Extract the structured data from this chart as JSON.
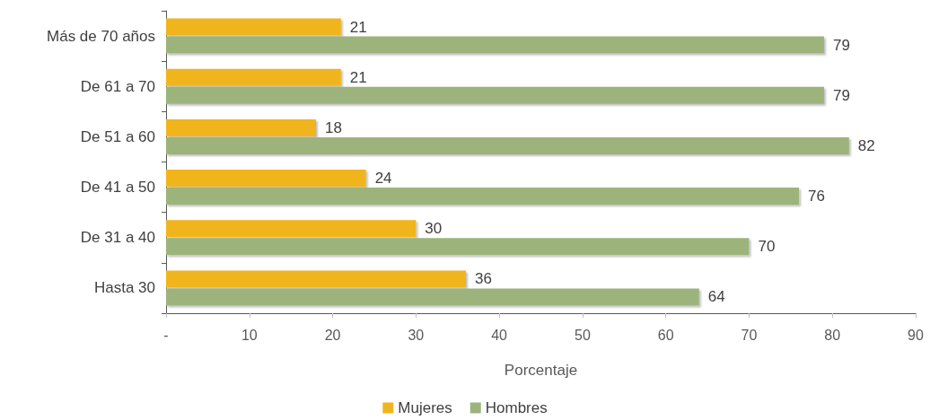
{
  "chart_data": {
    "type": "bar",
    "orientation": "horizontal",
    "xlabel": "Porcentaje",
    "categories": [
      "Más de 70 años",
      "De 61 a 70",
      "De 51 a 60",
      "De 41 a 50",
      "De 31 a 40",
      "Hasta 30"
    ],
    "series": [
      {
        "name": "Mujeres",
        "color": "#f0b51e",
        "values": [
          21,
          21,
          18,
          24,
          30,
          36
        ]
      },
      {
        "name": "Hombres",
        "color": "#9cb47c",
        "values": [
          79,
          79,
          82,
          76,
          70,
          64
        ]
      }
    ],
    "xlim": [
      0,
      90
    ],
    "xticks": [
      {
        "value": 0,
        "label": "-"
      },
      10,
      20,
      30,
      40,
      50,
      60,
      70,
      80,
      90
    ],
    "data_labels": true,
    "grid": false,
    "legend": "bottom"
  }
}
